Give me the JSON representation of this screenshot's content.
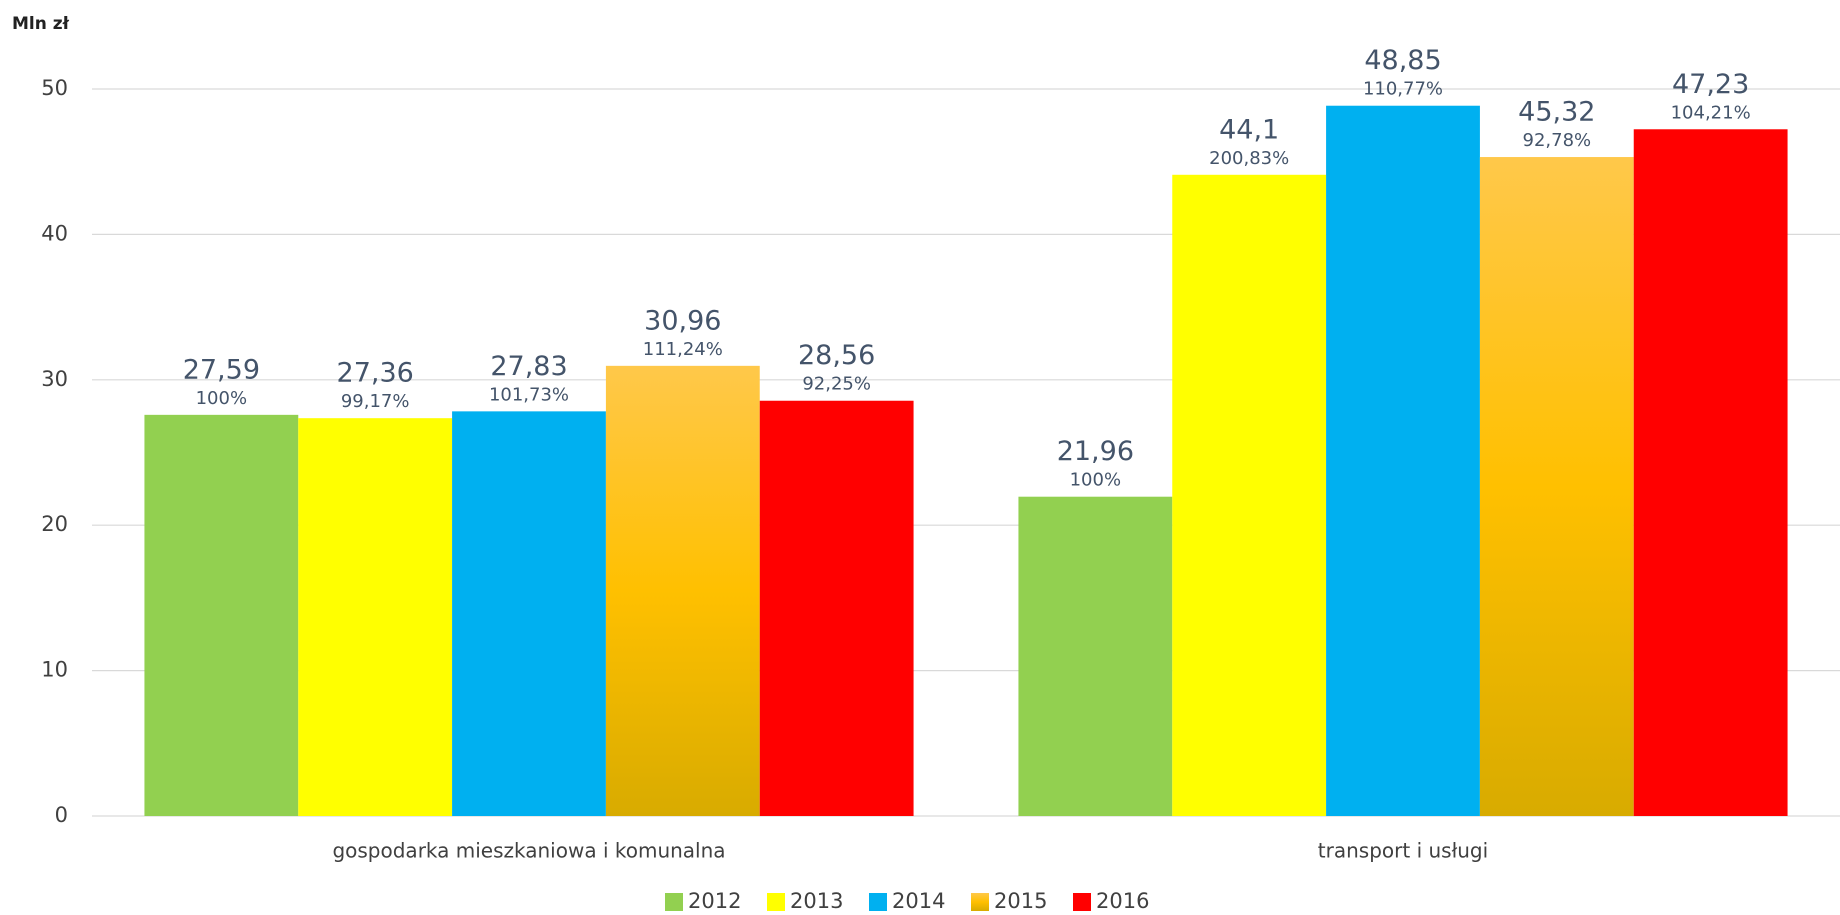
{
  "chart_data": {
    "type": "bar",
    "y_label": "Mln zł",
    "categories": [
      "gospodarka mieszkaniowa i komunalna",
      "transport i usługi"
    ],
    "series": [
      {
        "name": "2012",
        "color": "#92d050",
        "values": [
          27.59,
          21.96
        ],
        "value_labels": [
          "27,59",
          "21,96"
        ],
        "percent_labels": [
          "100%",
          "100%"
        ]
      },
      {
        "name": "2013",
        "color": "#ffff00",
        "values": [
          27.36,
          44.1
        ],
        "value_labels": [
          "27,36",
          "44,1"
        ],
        "percent_labels": [
          "99,17%",
          "200,83%"
        ]
      },
      {
        "name": "2014",
        "color": "#00b0f0",
        "values": [
          27.83,
          48.85
        ],
        "value_labels": [
          "27,83",
          "48,85"
        ],
        "percent_labels": [
          "101,73%",
          "110,77%"
        ]
      },
      {
        "name": "2015",
        "color": "#ffc000",
        "values": [
          30.96,
          45.32
        ],
        "value_labels": [
          "30,96",
          "45,32"
        ],
        "percent_labels": [
          "111,24%",
          "92,78%"
        ]
      },
      {
        "name": "2016",
        "color": "#ff0000",
        "values": [
          28.56,
          47.23
        ],
        "value_labels": [
          "28,56",
          "47,23"
        ],
        "percent_labels": [
          "92,25%",
          "104,21%"
        ]
      }
    ],
    "ylim": [
      0,
      50
    ],
    "yticks": [
      0,
      10,
      20,
      30,
      40,
      50
    ],
    "grid": true,
    "legend": "bottom"
  }
}
